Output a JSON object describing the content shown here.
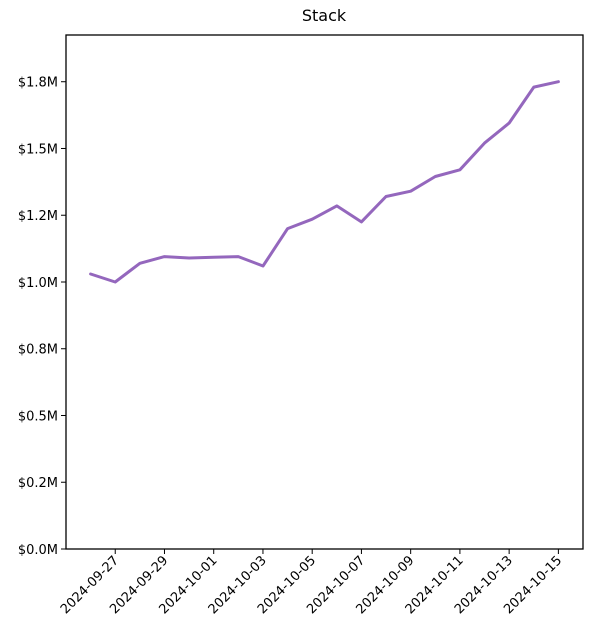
{
  "chart_data": {
    "type": "line",
    "title": "Stack",
    "xlabel": "",
    "ylabel": "",
    "x_tick_labels": [
      "2024-09-27",
      "2024-09-29",
      "2024-10-01",
      "2024-10-03",
      "2024-10-05",
      "2024-10-07",
      "2024-10-09",
      "2024-10-11",
      "2024-10-13",
      "2024-10-15"
    ],
    "y_tick_labels": [
      "$0.0M",
      "$0.2M",
      "$0.5M",
      "$0.8M",
      "$1.0M",
      "$1.2M",
      "$1.5M",
      "$1.8M"
    ],
    "y_ticks": [
      0,
      250000,
      500000,
      750000,
      1000000,
      1250000,
      1500000,
      1750000
    ],
    "xlim": [
      "2024-09-25T00:00:00",
      "2024-10-16T00:00:00"
    ],
    "ylim": [
      0,
      1925000
    ],
    "grid": false,
    "series": [
      {
        "color": "#9467bd",
        "x": [
          "2024-09-26",
          "2024-09-27",
          "2024-09-28",
          "2024-09-29",
          "2024-09-30",
          "2024-10-01",
          "2024-10-02",
          "2024-10-03",
          "2024-10-04",
          "2024-10-05",
          "2024-10-06",
          "2024-10-07",
          "2024-10-08",
          "2024-10-09",
          "2024-10-10",
          "2024-10-11",
          "2024-10-12",
          "2024-10-13",
          "2024-10-14",
          "2024-10-15"
        ],
        "values": [
          1030000,
          1000000,
          1070000,
          1095000,
          1090000,
          1093000,
          1095000,
          1060000,
          1200000,
          1235000,
          1285000,
          1225000,
          1320000,
          1340000,
          1395000,
          1420000,
          1520000,
          1595000,
          1730000,
          1750000
        ]
      }
    ]
  }
}
